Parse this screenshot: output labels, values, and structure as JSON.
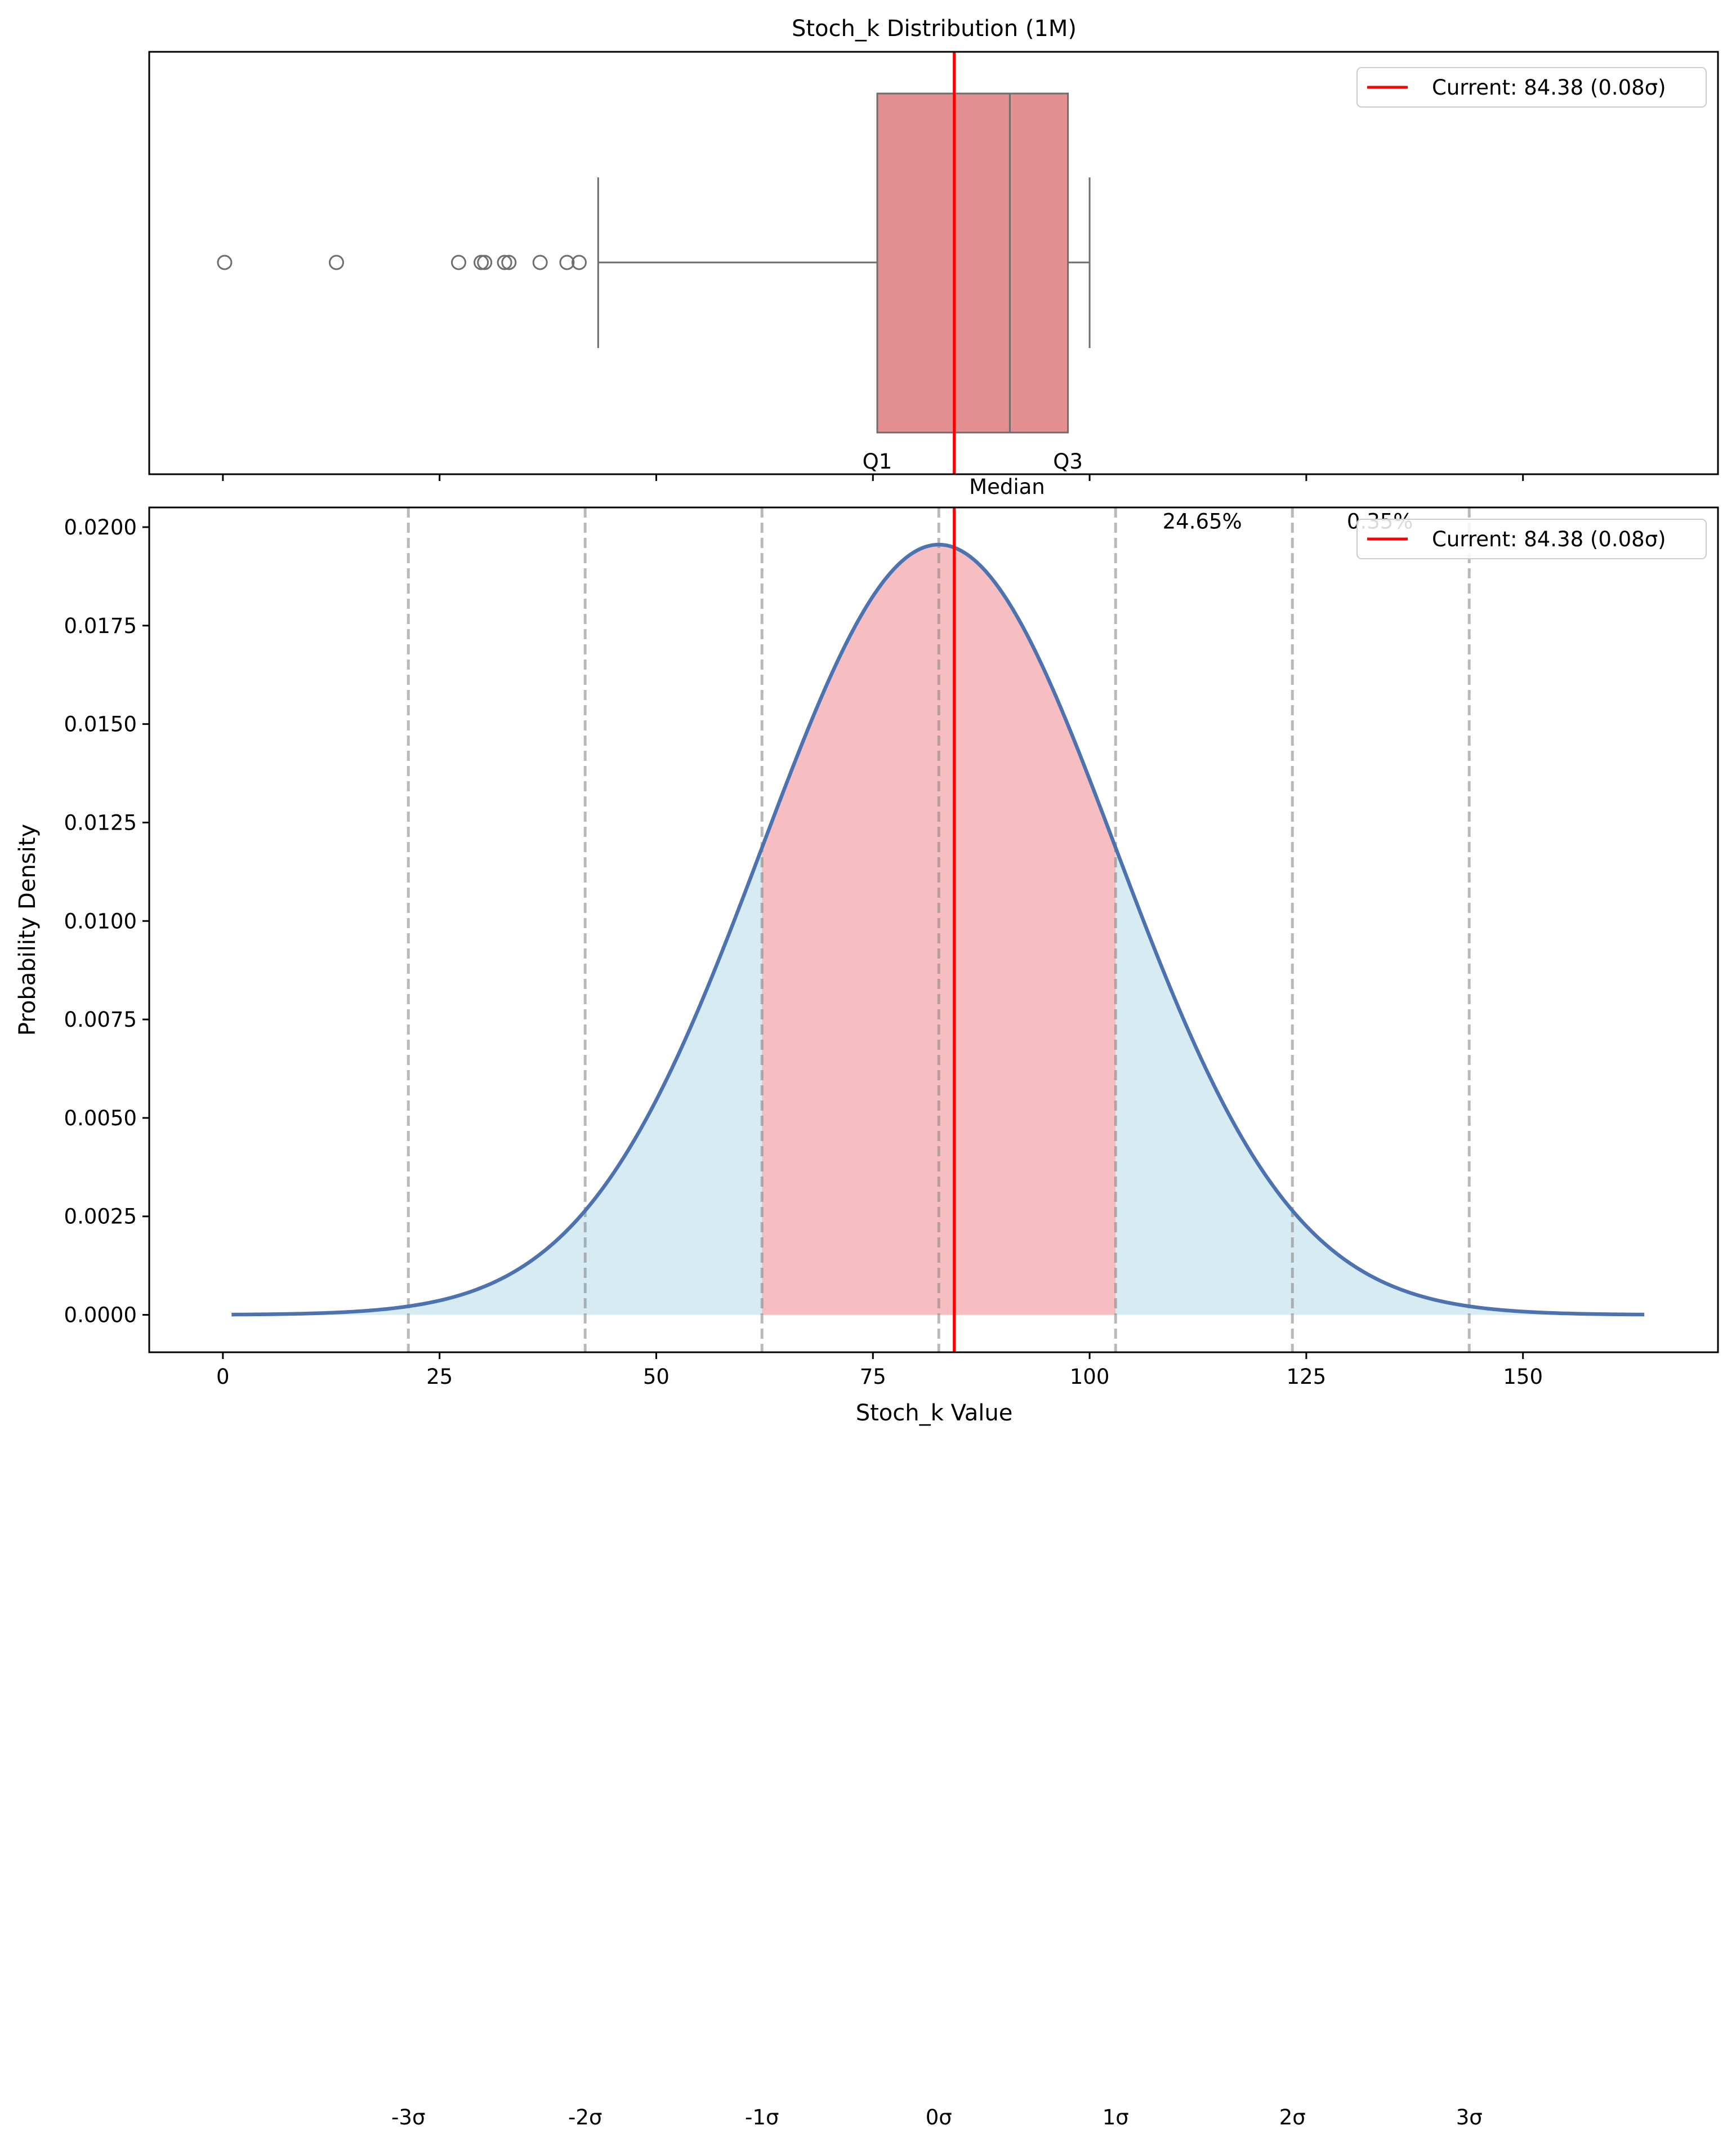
{
  "chart_data": [
    {
      "type": "box",
      "title": "Stoch_k Distribution (1M)",
      "xlim": [
        -8.5,
        172.5
      ],
      "box": {
        "q1": 75.5,
        "median": 90.8,
        "q3": 97.5,
        "whisker_low": 43.3,
        "whisker_high": 100.0
      },
      "outliers": [
        0.2,
        13.1,
        27.2,
        29.8,
        30.2,
        32.5,
        33.0,
        36.6,
        39.7,
        41.1
      ],
      "box_color": "#e38e8f",
      "box_labels": {
        "q1": "Q1",
        "median": "Median",
        "q3": "Q3"
      },
      "current": {
        "value": 84.38,
        "color": "#ff0000"
      },
      "legend": {
        "label": "Current: 84.38 (0.08σ)",
        "placement": "upper right"
      }
    },
    {
      "type": "line",
      "xlabel": "Stoch_k Value",
      "ylabel": "Probability Density",
      "xlim": [
        -8.5,
        172.5
      ],
      "ylim": [
        -0.00095,
        0.0205
      ],
      "xticks": [
        0,
        25,
        50,
        75,
        100,
        125,
        150
      ],
      "yticks": [
        "0.0000",
        "0.0025",
        "0.0050",
        "0.0075",
        "0.0100",
        "0.0125",
        "0.0150",
        "0.0175",
        "0.0200"
      ],
      "curve": {
        "mean": 82.6,
        "std": 20.4,
        "x_start": 1.0,
        "x_end": 164.0,
        "color": "#4c72b0"
      },
      "fill_outer_color": "#add8e6",
      "fill_inner_color": "#f08080",
      "sigma_lines": [
        {
          "value": 21.4,
          "label": "-3σ"
        },
        {
          "value": 41.8,
          "label": "-2σ"
        },
        {
          "value": 62.2,
          "label": "-1σ"
        },
        {
          "value": 82.6,
          "label": "0σ"
        },
        {
          "value": 103.0,
          "label": "1σ"
        },
        {
          "value": 123.4,
          "label": "2σ"
        },
        {
          "value": 143.8,
          "label": "3σ"
        }
      ],
      "annotations": [
        {
          "text": "24.65%",
          "x": 113.0,
          "y": 0.02025
        },
        {
          "text": "0.35%",
          "x": 133.5,
          "y": 0.02025
        }
      ],
      "current": {
        "value": 84.38,
        "color": "#ff0000"
      },
      "legend": {
        "label": "Current: 84.38 (0.08σ)",
        "placement": "upper right"
      }
    }
  ]
}
